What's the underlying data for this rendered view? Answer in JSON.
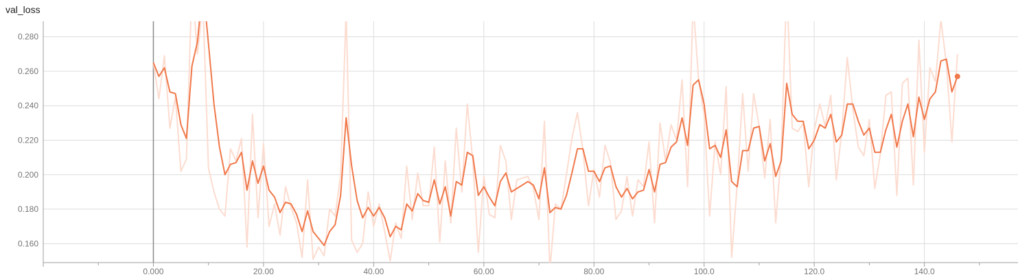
{
  "chart_data": {
    "type": "line",
    "title": "val_loss",
    "xlabel": "",
    "ylabel": "",
    "xlim": [
      -20,
      157
    ],
    "ylim": [
      0.149,
      0.289
    ],
    "x_ticks": [
      {
        "value": 0,
        "label": "0.000"
      },
      {
        "value": 20,
        "label": "20.00"
      },
      {
        "value": 40,
        "label": "40.00"
      },
      {
        "value": 60,
        "label": "60.00"
      },
      {
        "value": 80,
        "label": "80.00"
      },
      {
        "value": 100,
        "label": "100.0"
      },
      {
        "value": 120,
        "label": "120.0"
      },
      {
        "value": 140,
        "label": "140.0"
      }
    ],
    "y_ticks": [
      {
        "value": 0.16,
        "label": "0.160"
      },
      {
        "value": 0.18,
        "label": "0.180"
      },
      {
        "value": 0.2,
        "label": "0.200"
      },
      {
        "value": 0.22,
        "label": "0.220"
      },
      {
        "value": 0.24,
        "label": "0.240"
      },
      {
        "value": 0.26,
        "label": "0.260"
      },
      {
        "value": 0.28,
        "label": "0.280"
      }
    ],
    "grid": true,
    "colors": {
      "smoothed": "#f0784a",
      "raw": "#fcdcd0",
      "grid": "#dcdcdc",
      "axis": "#9e9e9e",
      "zero_line": "#888888"
    },
    "series": [
      {
        "role": "raw",
        "x": [
          0,
          1,
          2,
          3,
          4,
          5,
          6,
          7,
          8,
          9,
          10,
          11,
          12,
          13,
          14,
          15,
          16,
          17,
          18,
          19,
          20,
          21,
          22,
          23,
          24,
          25,
          26,
          27,
          28,
          29,
          30,
          31,
          32,
          33,
          34,
          35,
          36,
          37,
          38,
          39,
          40,
          41,
          42,
          43,
          44,
          45,
          46,
          47,
          48,
          49,
          50,
          51,
          52,
          53,
          54,
          55,
          56,
          57,
          58,
          59,
          60,
          61,
          62,
          63,
          64,
          65,
          66,
          67,
          68,
          69,
          70,
          71,
          72,
          73,
          74,
          75,
          76,
          77,
          78,
          79,
          80,
          81,
          82,
          83,
          84,
          85,
          86,
          87,
          88,
          89,
          90,
          91,
          92,
          93,
          94,
          95,
          96,
          97,
          98,
          99,
          100,
          101,
          102,
          103,
          104,
          105,
          106,
          107,
          108,
          109,
          110,
          111,
          112,
          113,
          114,
          115,
          116,
          117,
          118,
          119,
          120,
          121,
          122,
          123,
          124,
          125,
          126,
          127,
          128,
          129,
          130,
          131,
          132,
          133,
          134,
          135,
          136,
          137,
          138,
          139,
          140,
          141,
          142,
          143,
          144,
          145,
          146
        ],
        "y": [
          0.265,
          0.244,
          0.269,
          0.227,
          0.245,
          0.202,
          0.209,
          0.31,
          0.27,
          0.3,
          0.204,
          0.19,
          0.18,
          0.176,
          0.215,
          0.208,
          0.221,
          0.158,
          0.235,
          0.175,
          0.218,
          0.17,
          0.183,
          0.165,
          0.193,
          0.181,
          0.172,
          0.152,
          0.197,
          0.151,
          0.158,
          0.153,
          0.18,
          0.176,
          0.2,
          0.295,
          0.162,
          0.155,
          0.16,
          0.19,
          0.17,
          0.183,
          0.167,
          0.15,
          0.172,
          0.163,
          0.205,
          0.174,
          0.201,
          0.182,
          0.182,
          0.216,
          0.161,
          0.208,
          0.172,
          0.227,
          0.19,
          0.241,
          0.208,
          0.155,
          0.199,
          0.177,
          0.175,
          0.217,
          0.208,
          0.174,
          0.197,
          0.198,
          0.199,
          0.192,
          0.174,
          0.231,
          0.145,
          0.183,
          0.18,
          0.2,
          0.221,
          0.236,
          0.214,
          0.182,
          0.203,
          0.187,
          0.217,
          0.207,
          0.174,
          0.179,
          0.199,
          0.176,
          0.197,
          0.193,
          0.219,
          0.172,
          0.23,
          0.208,
          0.229,
          0.22,
          0.255,
          0.193,
          0.3,
          0.255,
          0.235,
          0.176,
          0.219,
          0.2,
          0.251,
          0.152,
          0.194,
          0.247,
          0.202,
          0.247,
          0.228,
          0.198,
          0.232,
          0.172,
          0.212,
          0.31,
          0.227,
          0.225,
          0.23,
          0.193,
          0.226,
          0.241,
          0.228,
          0.246,
          0.197,
          0.225,
          0.268,
          0.238,
          0.216,
          0.211,
          0.232,
          0.192,
          0.212,
          0.246,
          0.248,
          0.188,
          0.253,
          0.256,
          0.194,
          0.278,
          0.213,
          0.262,
          0.254,
          0.29,
          0.264,
          0.219,
          0.27
        ]
      },
      {
        "role": "smoothed",
        "x": [
          0,
          1,
          2,
          3,
          4,
          5,
          6,
          7,
          8,
          9,
          10,
          11,
          12,
          13,
          14,
          15,
          16,
          17,
          18,
          19,
          20,
          21,
          22,
          23,
          24,
          25,
          26,
          27,
          28,
          29,
          30,
          31,
          32,
          33,
          34,
          35,
          36,
          37,
          38,
          39,
          40,
          41,
          42,
          43,
          44,
          45,
          46,
          47,
          48,
          49,
          50,
          51,
          52,
          53,
          54,
          55,
          56,
          57,
          58,
          59,
          60,
          61,
          62,
          63,
          64,
          65,
          66,
          67,
          68,
          69,
          70,
          71,
          72,
          73,
          74,
          75,
          76,
          77,
          78,
          79,
          80,
          81,
          82,
          83,
          84,
          85,
          86,
          87,
          88,
          89,
          90,
          91,
          92,
          93,
          94,
          95,
          96,
          97,
          98,
          99,
          100,
          101,
          102,
          103,
          104,
          105,
          106,
          107,
          108,
          109,
          110,
          111,
          112,
          113,
          114,
          115,
          116,
          117,
          118,
          119,
          120,
          121,
          122,
          123,
          124,
          125,
          126,
          127,
          128,
          129,
          130,
          131,
          132,
          133,
          134,
          135,
          136,
          137,
          138,
          139,
          140,
          141,
          142,
          143,
          144,
          145,
          146
        ],
        "y": [
          0.265,
          0.257,
          0.262,
          0.248,
          0.247,
          0.229,
          0.221,
          0.263,
          0.277,
          0.31,
          0.276,
          0.241,
          0.216,
          0.2,
          0.206,
          0.207,
          0.213,
          0.191,
          0.208,
          0.195,
          0.205,
          0.191,
          0.187,
          0.178,
          0.184,
          0.183,
          0.177,
          0.167,
          0.179,
          0.167,
          0.163,
          0.159,
          0.167,
          0.171,
          0.188,
          0.233,
          0.205,
          0.185,
          0.175,
          0.181,
          0.176,
          0.181,
          0.175,
          0.164,
          0.17,
          0.168,
          0.183,
          0.179,
          0.189,
          0.185,
          0.184,
          0.197,
          0.183,
          0.193,
          0.176,
          0.196,
          0.194,
          0.213,
          0.211,
          0.188,
          0.193,
          0.187,
          0.182,
          0.196,
          0.201,
          0.19,
          0.192,
          0.194,
          0.196,
          0.194,
          0.186,
          0.204,
          0.178,
          0.181,
          0.18,
          0.188,
          0.201,
          0.215,
          0.215,
          0.202,
          0.202,
          0.196,
          0.204,
          0.205,
          0.193,
          0.187,
          0.192,
          0.186,
          0.19,
          0.191,
          0.203,
          0.19,
          0.206,
          0.207,
          0.216,
          0.219,
          0.233,
          0.217,
          0.252,
          0.255,
          0.241,
          0.215,
          0.217,
          0.21,
          0.226,
          0.196,
          0.193,
          0.214,
          0.214,
          0.227,
          0.228,
          0.208,
          0.218,
          0.199,
          0.208,
          0.253,
          0.235,
          0.231,
          0.231,
          0.215,
          0.22,
          0.229,
          0.227,
          0.235,
          0.219,
          0.223,
          0.241,
          0.241,
          0.231,
          0.223,
          0.227,
          0.213,
          0.213,
          0.226,
          0.235,
          0.216,
          0.231,
          0.241,
          0.222,
          0.245,
          0.232,
          0.244,
          0.248,
          0.266,
          0.267,
          0.248,
          0.257
        ]
      }
    ]
  }
}
